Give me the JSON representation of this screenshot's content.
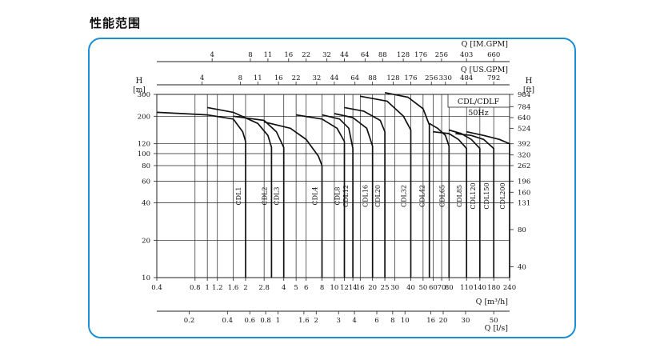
{
  "page_title": "性能范围",
  "chart_data": {
    "type": "line",
    "subtitle_lines": [
      "CDL/CDLF",
      "50Hz"
    ],
    "y_axis": {
      "label_left_letter": "H",
      "label_left_unit": "[m]",
      "label_right_letter": "H",
      "label_right_unit": "[ft]",
      "scale": "log",
      "ylim": [
        10,
        300
      ],
      "ticks_m": [
        300,
        200,
        120,
        100,
        80,
        60,
        40,
        20,
        10
      ],
      "ticks_ft": [
        {
          "label": "984",
          "m": 300
        },
        {
          "label": "784",
          "m": 239
        },
        {
          "label": "640",
          "m": 195
        },
        {
          "label": "524",
          "m": 160
        },
        {
          "label": "392",
          "m": 120
        },
        {
          "label": "320",
          "m": 97.5
        },
        {
          "label": "262",
          "m": 80
        },
        {
          "label": "196",
          "m": 60
        },
        {
          "label": "160",
          "m": 48.8
        },
        {
          "label": "131",
          "m": 40
        },
        {
          "label": "80",
          "m": 24.4
        },
        {
          "label": "40",
          "m": 12.2
        }
      ]
    },
    "x_axis_m3h": {
      "label": "Q [m³/h]",
      "scale": "log",
      "xlim": [
        0.4,
        240
      ],
      "ticks": [
        {
          "label": "0.4",
          "v": 0.4
        },
        {
          "label": "0.8",
          "v": 0.8
        },
        {
          "label": "1",
          "v": 1
        },
        {
          "label": "1.2",
          "v": 1.2
        },
        {
          "label": "1.6",
          "v": 1.6
        },
        {
          "label": "2",
          "v": 2
        },
        {
          "label": "2.8",
          "v": 2.8
        },
        {
          "label": "4",
          "v": 4
        },
        {
          "label": "5",
          "v": 5
        },
        {
          "label": "6",
          "v": 6
        },
        {
          "label": "8",
          "v": 8
        },
        {
          "label": "10",
          "v": 10
        },
        {
          "label": "12",
          "v": 12
        },
        {
          "label": "14",
          "v": 14
        },
        {
          "label": "16",
          "v": 16
        },
        {
          "label": "20",
          "v": 20
        },
        {
          "label": "25",
          "v": 25
        },
        {
          "label": "30",
          "v": 30
        },
        {
          "label": "40",
          "v": 40
        },
        {
          "label": "50",
          "v": 50
        },
        {
          "label": "60",
          "v": 60
        },
        {
          "label": "70",
          "v": 70
        },
        {
          "label": "80",
          "v": 80
        },
        {
          "label": "110",
          "v": 110
        },
        {
          "label": "140",
          "v": 140
        },
        {
          "label": "180",
          "v": 180
        },
        {
          "label": "240",
          "v": 240
        }
      ]
    },
    "x_axis_ls": {
      "label": "Q [l/s]",
      "ticks": [
        "0.2",
        "0.4",
        "0.6",
        "0.8",
        "1",
        "1.6",
        "2",
        "3",
        "4",
        "6",
        "8",
        "10",
        "16",
        "20",
        "30",
        "50"
      ]
    },
    "x_axis_usgpm": {
      "label": "Q [US.GPM]",
      "ticks": [
        "4",
        "8",
        "11",
        "16",
        "22",
        "32",
        "44",
        "64",
        "88",
        "128",
        "176",
        "256",
        "330",
        "484",
        "792"
      ]
    },
    "x_axis_imgpm": {
      "label": "Q [IM.GPM]",
      "ticks": [
        "4",
        "8",
        "11",
        "16",
        "22",
        "32",
        "44",
        "64",
        "88",
        "128",
        "176",
        "256",
        "403",
        "660"
      ]
    },
    "series": [
      {
        "name": "CDL1",
        "points": [
          [
            0.4,
            215
          ],
          [
            1,
            205
          ],
          [
            1.6,
            190
          ],
          [
            1.9,
            150
          ],
          [
            2,
            125
          ],
          [
            2,
            10
          ]
        ]
      },
      {
        "name": "CDL2",
        "points": [
          [
            1,
            235
          ],
          [
            1.6,
            215
          ],
          [
            2.5,
            175
          ],
          [
            3,
            140
          ],
          [
            3.2,
            112
          ],
          [
            3.2,
            10
          ]
        ]
      },
      {
        "name": "CDL3",
        "points": [
          [
            1.6,
            200
          ],
          [
            2.8,
            185
          ],
          [
            3.5,
            150
          ],
          [
            4,
            112
          ],
          [
            4,
            10
          ]
        ]
      },
      {
        "name": "CDL4",
        "points": [
          [
            2.8,
            180
          ],
          [
            4.5,
            160
          ],
          [
            6,
            130
          ],
          [
            7.5,
            95
          ],
          [
            8,
            80
          ],
          [
            8,
            10
          ]
        ]
      },
      {
        "name": "CDL8",
        "points": [
          [
            5,
            205
          ],
          [
            8,
            190
          ],
          [
            10.5,
            160
          ],
          [
            12,
            125
          ],
          [
            12,
            10
          ]
        ]
      },
      {
        "name": "CDL12",
        "points": [
          [
            8,
            205
          ],
          [
            11,
            190
          ],
          [
            13,
            160
          ],
          [
            14,
            110
          ],
          [
            14,
            10
          ]
        ]
      },
      {
        "name": "CDL16",
        "points": [
          [
            10,
            210
          ],
          [
            14,
            195
          ],
          [
            18,
            160
          ],
          [
            20,
            115
          ],
          [
            20,
            10
          ]
        ]
      },
      {
        "name": "CDL20",
        "points": [
          [
            12,
            235
          ],
          [
            17,
            220
          ],
          [
            23,
            185
          ],
          [
            25,
            150
          ],
          [
            25,
            10
          ]
        ]
      },
      {
        "name": "CDL32",
        "points": [
          [
            16,
            290
          ],
          [
            26,
            265
          ],
          [
            35,
            200
          ],
          [
            40,
            155
          ],
          [
            40,
            10
          ]
        ]
      },
      {
        "name": "CDL42",
        "points": [
          [
            25,
            310
          ],
          [
            38,
            285
          ],
          [
            50,
            230
          ],
          [
            56,
            170
          ],
          [
            56,
            10
          ]
        ]
      },
      {
        "name": "CDL65",
        "points": [
          [
            56,
            175
          ],
          [
            65,
            160
          ],
          [
            75,
            140
          ],
          [
            80,
            115
          ],
          [
            80,
            10
          ]
        ]
      },
      {
        "name": "CDL85",
        "points": [
          [
            60,
            150
          ],
          [
            80,
            145
          ],
          [
            95,
            130
          ],
          [
            110,
            110
          ],
          [
            110,
            10
          ]
        ]
      },
      {
        "name": "CDL120",
        "points": [
          [
            80,
            155
          ],
          [
            100,
            145
          ],
          [
            120,
            130
          ],
          [
            140,
            110
          ],
          [
            140,
            10
          ]
        ]
      },
      {
        "name": "CDL150",
        "points": [
          [
            90,
            145
          ],
          [
            120,
            140
          ],
          [
            150,
            130
          ],
          [
            180,
            110
          ],
          [
            180,
            10
          ]
        ]
      },
      {
        "name": "CDL200",
        "points": [
          [
            110,
            150
          ],
          [
            150,
            140
          ],
          [
            200,
            130
          ],
          [
            240,
            120
          ],
          [
            240,
            10
          ]
        ]
      }
    ]
  }
}
